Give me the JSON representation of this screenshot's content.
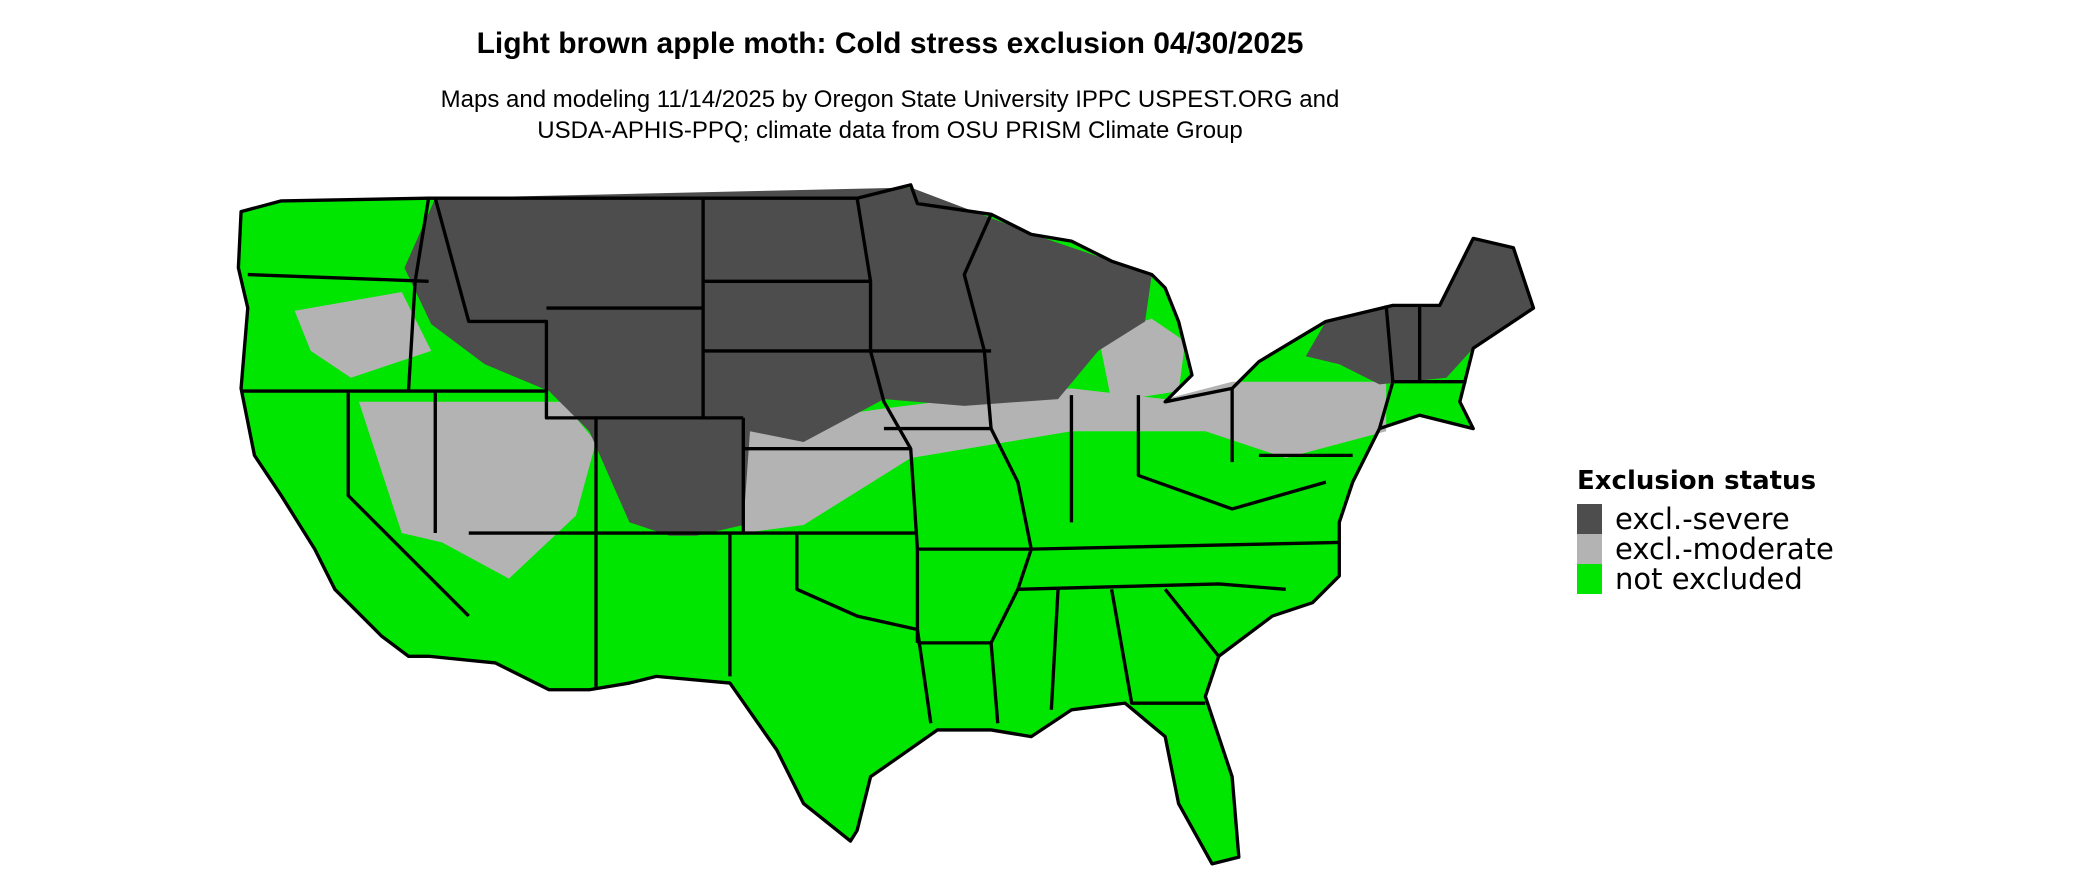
{
  "title": "Light brown apple moth: Cold stress exclusion 04/30/2025",
  "subtitle_lines": [
    "Maps and modeling 11/14/2025 by Oregon State University IPPC USPEST.ORG and",
    "USDA-APHIS-PPQ; climate data from OSU PRISM Climate Group"
  ],
  "map": {
    "region": "Contiguous United States",
    "borders": "state"
  },
  "legend": {
    "title": "Exclusion status",
    "items": [
      {
        "label": "excl.-severe",
        "color": "#4d4d4d"
      },
      {
        "label": "excl.-moderate",
        "color": "#b3b3b3"
      },
      {
        "label": "not excluded",
        "color": "#00e600"
      }
    ]
  }
}
